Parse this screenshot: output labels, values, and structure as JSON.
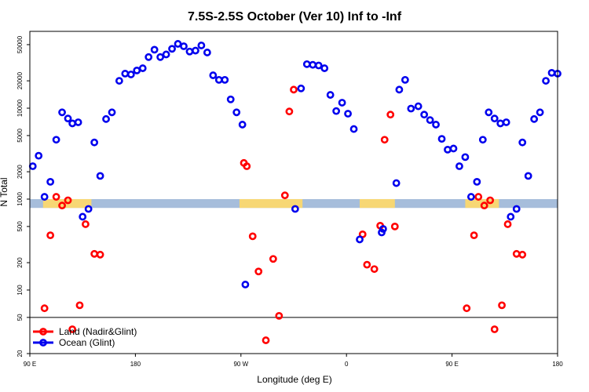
{
  "chart_data": {
    "type": "scatter",
    "title": "7.5S-2.5S October (Ver 10)   Inf to -Inf",
    "xlabel": "Longitude (deg E)",
    "ylabel": "N Total",
    "xlim": [
      90,
      450
    ],
    "ylim": [
      20,
      70000
    ],
    "y_scale": "log",
    "x_ticks": [
      {
        "value": 90,
        "label": "90 E"
      },
      {
        "value": 162,
        "label": "180"
      },
      {
        "value": 234,
        "label": "90 W"
      },
      {
        "value": 306,
        "label": "0"
      },
      {
        "value": 378,
        "label": "90 E"
      },
      {
        "value": 450,
        "label": "180"
      }
    ],
    "y_ticks": [
      {
        "value": 20,
        "label": "20"
      },
      {
        "value": 50,
        "label": "50"
      },
      {
        "value": 100,
        "label": "100"
      },
      {
        "value": 200,
        "label": "200"
      },
      {
        "value": 500,
        "label": "500"
      },
      {
        "value": 1000,
        "label": "1000"
      },
      {
        "value": 2000,
        "label": "2000"
      },
      {
        "value": 5000,
        "label": "5000"
      },
      {
        "value": 10000,
        "label": "10000"
      },
      {
        "value": 20000,
        "label": "20000"
      },
      {
        "value": 50000,
        "label": "50000"
      }
    ],
    "reference_line_y": 50,
    "land_band": {
      "y_range": [
        800,
        1000
      ],
      "base_color": "#a6bddb",
      "land_color": "#f7d774",
      "land_x_ranges": [
        [
          99,
          132
        ],
        [
          233,
          276
        ],
        [
          315,
          339
        ],
        [
          387,
          410
        ]
      ]
    },
    "series": [
      {
        "name": "Land (Nadir&Glint)",
        "color": "#ff0000",
        "points": [
          [
            100,
            63
          ],
          [
            104,
            400
          ],
          [
            108,
            1060
          ],
          [
            112,
            850
          ],
          [
            116,
            970
          ],
          [
            119,
            37
          ],
          [
            124,
            68
          ],
          [
            128,
            530
          ],
          [
            134,
            250
          ],
          [
            138,
            245
          ],
          [
            236,
            2500
          ],
          [
            238,
            2300
          ],
          [
            242,
            390
          ],
          [
            246,
            160
          ],
          [
            251,
            28
          ],
          [
            256,
            220
          ],
          [
            260,
            52
          ],
          [
            264,
            1100
          ],
          [
            267,
            9200
          ],
          [
            270,
            16000
          ],
          [
            317,
            410
          ],
          [
            320,
            190
          ],
          [
            325,
            170
          ],
          [
            329,
            510
          ],
          [
            332,
            4500
          ],
          [
            336,
            8500
          ],
          [
            339,
            500
          ],
          [
            388,
            63
          ],
          [
            393,
            400
          ],
          [
            396,
            1060
          ],
          [
            400,
            850
          ],
          [
            404,
            970
          ],
          [
            407,
            37
          ],
          [
            412,
            68
          ],
          [
            416,
            530
          ],
          [
            422,
            250
          ],
          [
            426,
            245
          ]
        ]
      },
      {
        "name": "Ocean (Glint)",
        "color": "#0000ee",
        "points": [
          [
            92,
            2300
          ],
          [
            96,
            3000
          ],
          [
            100,
            1060
          ],
          [
            104,
            1550
          ],
          [
            108,
            4500
          ],
          [
            112,
            9000
          ],
          [
            116,
            7700
          ],
          [
            119,
            6800
          ],
          [
            123,
            7000
          ],
          [
            126,
            640
          ],
          [
            130,
            780
          ],
          [
            134,
            4200
          ],
          [
            138,
            1800
          ],
          [
            142,
            7600
          ],
          [
            146,
            9000
          ],
          [
            151,
            20000
          ],
          [
            155,
            24000
          ],
          [
            159,
            23500
          ],
          [
            163,
            26000
          ],
          [
            167,
            27500
          ],
          [
            171,
            36500
          ],
          [
            175,
            44000
          ],
          [
            179,
            36500
          ],
          [
            183,
            39000
          ],
          [
            187,
            45000
          ],
          [
            191,
            51000
          ],
          [
            195,
            48000
          ],
          [
            199,
            42000
          ],
          [
            203,
            43000
          ],
          [
            207,
            49000
          ],
          [
            211,
            41000
          ],
          [
            215,
            23000
          ],
          [
            219,
            20500
          ],
          [
            223,
            20500
          ],
          [
            227,
            12500
          ],
          [
            231,
            9000
          ],
          [
            235,
            6600
          ],
          [
            237,
            115
          ],
          [
            271,
            780
          ],
          [
            275,
            16500
          ],
          [
            279,
            30500
          ],
          [
            283,
            30000
          ],
          [
            287,
            29500
          ],
          [
            291,
            27500
          ],
          [
            295,
            14000
          ],
          [
            299,
            9300
          ],
          [
            303,
            11500
          ],
          [
            307,
            8700
          ],
          [
            311,
            5900
          ],
          [
            315,
            360
          ],
          [
            330,
            430
          ],
          [
            331,
            470
          ],
          [
            340,
            1500
          ],
          [
            342,
            16000
          ],
          [
            346,
            20500
          ],
          [
            350,
            9900
          ],
          [
            355,
            10500
          ],
          [
            359,
            8500
          ],
          [
            363,
            7400
          ],
          [
            367,
            6600
          ],
          [
            371,
            4600
          ],
          [
            375,
            3500
          ],
          [
            379,
            3600
          ],
          [
            383,
            2300
          ],
          [
            387,
            2900
          ],
          [
            391,
            1060
          ],
          [
            395,
            1550
          ],
          [
            399,
            4500
          ],
          [
            403,
            9000
          ],
          [
            407,
            7700
          ],
          [
            411,
            6800
          ],
          [
            415,
            7000
          ],
          [
            418,
            640
          ],
          [
            422,
            780
          ],
          [
            426,
            4200
          ],
          [
            430,
            1800
          ],
          [
            434,
            7600
          ],
          [
            438,
            9000
          ],
          [
            442,
            20000
          ],
          [
            446,
            24500
          ],
          [
            450,
            24000
          ]
        ]
      }
    ]
  }
}
